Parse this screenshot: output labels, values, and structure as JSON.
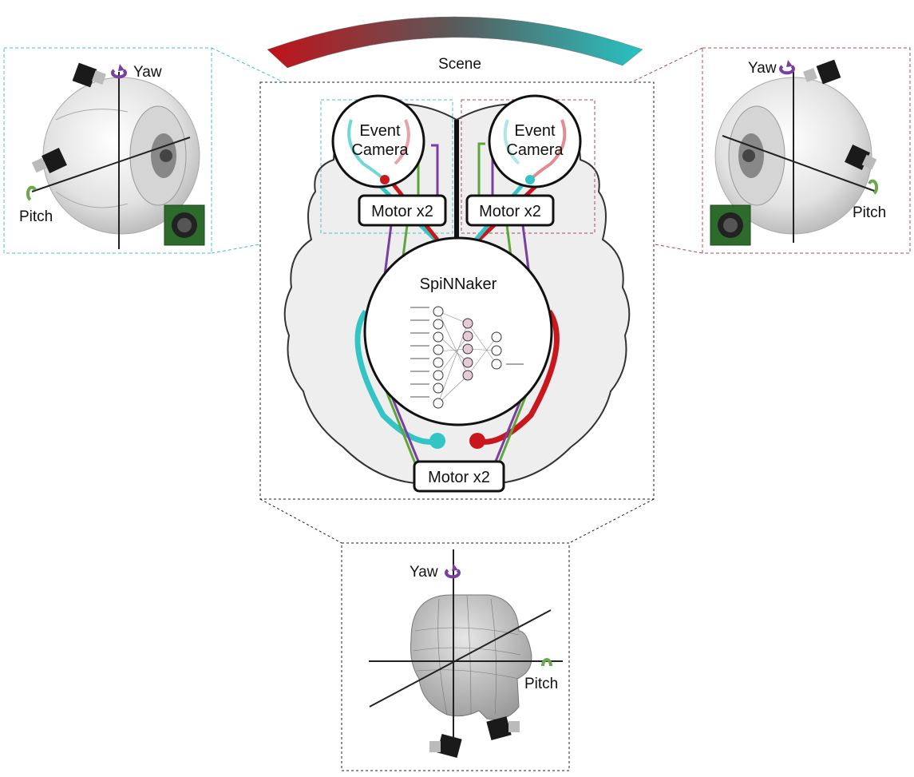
{
  "scene": {
    "label": "Scene",
    "gradient_colors": [
      "#c0121a",
      "#5a5a5a",
      "#27c3c3"
    ]
  },
  "left_eye": {
    "yaw_label": "Yaw",
    "pitch_label": "Pitch",
    "frame_color": "#4bbfc4"
  },
  "right_eye": {
    "yaw_label": "Yaw",
    "pitch_label": "Pitch",
    "frame_color": "#a84b57"
  },
  "brain": {
    "left_camera_label_line1": "Event",
    "left_camera_label_line2": "Camera",
    "right_camera_label_line1": "Event",
    "right_camera_label_line2": "Camera",
    "left_motor_label": "Motor x2",
    "right_motor_label": "Motor x2",
    "bottom_motor_label": "Motor x2",
    "processor_label": "SpiNNaker"
  },
  "head": {
    "yaw_label": "Yaw",
    "pitch_label": "Pitch"
  },
  "colors": {
    "cyan": "#33c4c6",
    "red": "#c9171e",
    "green": "#5fa63a",
    "purple": "#7b3fa0",
    "yaw_icon": "#7b3fa0",
    "pitch_icon": "#6aa84f"
  }
}
